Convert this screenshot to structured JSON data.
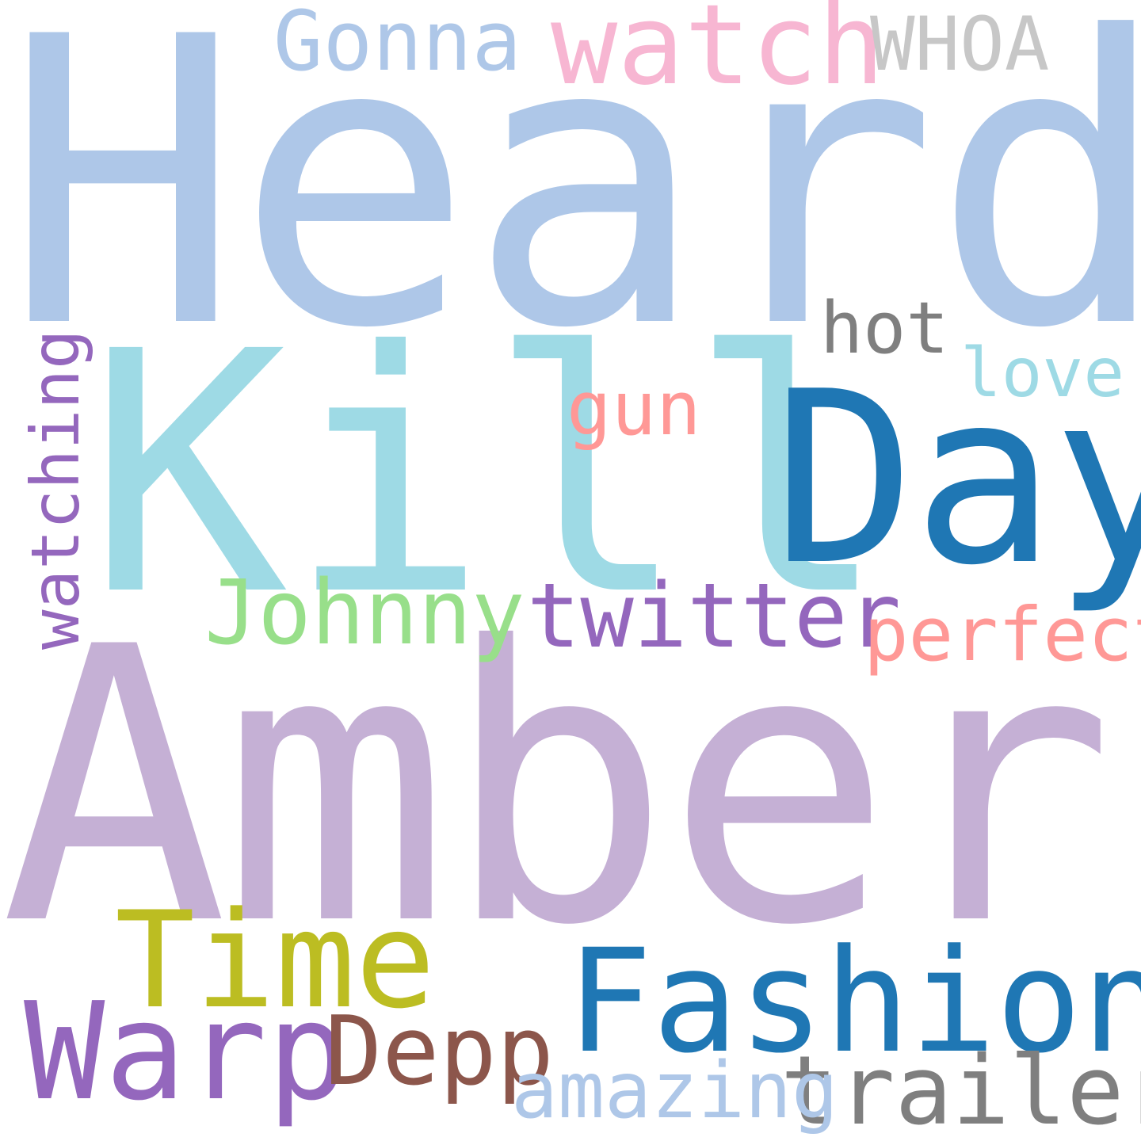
{
  "words": [
    {
      "id": "heard",
      "text": "Heard",
      "color": "#aec7e8"
    },
    {
      "id": "amber",
      "text": "Amber",
      "color": "#c5b0d5"
    },
    {
      "id": "kill",
      "text": "Kill",
      "color": "#9edae5"
    },
    {
      "id": "day",
      "text": "Day",
      "color": "#1f77b4"
    },
    {
      "id": "fashion",
      "text": "Fashion",
      "color": "#1f77b4"
    },
    {
      "id": "time",
      "text": "Time",
      "color": "#bcbd22"
    },
    {
      "id": "warp",
      "text": "Warp",
      "color": "#9467bd"
    },
    {
      "id": "depp",
      "text": "Depp",
      "color": "#8c564b"
    },
    {
      "id": "trailer",
      "text": "trailer",
      "color": "#7f7f7f"
    },
    {
      "id": "amazing",
      "text": "amazing",
      "color": "#aec7e8"
    },
    {
      "id": "twitter",
      "text": "twitter",
      "color": "#9467bd"
    },
    {
      "id": "johnny",
      "text": "Johnny",
      "color": "#98df8a"
    },
    {
      "id": "perfect",
      "text": "perfect",
      "color": "#ff9896"
    },
    {
      "id": "watch",
      "text": "watch",
      "color": "#f7b6d2"
    },
    {
      "id": "gonna",
      "text": "Gonna",
      "color": "#aec7e8"
    },
    {
      "id": "whoa",
      "text": "WHOA",
      "color": "#c7c7c7"
    },
    {
      "id": "hot",
      "text": "hot",
      "color": "#7f7f7f"
    },
    {
      "id": "love",
      "text": "love",
      "color": "#9edae5"
    },
    {
      "id": "gun",
      "text": "gun",
      "color": "#ff9896"
    },
    {
      "id": "watching",
      "text": "watching",
      "color": "#9467bd",
      "orientation": "vertical"
    }
  ]
}
